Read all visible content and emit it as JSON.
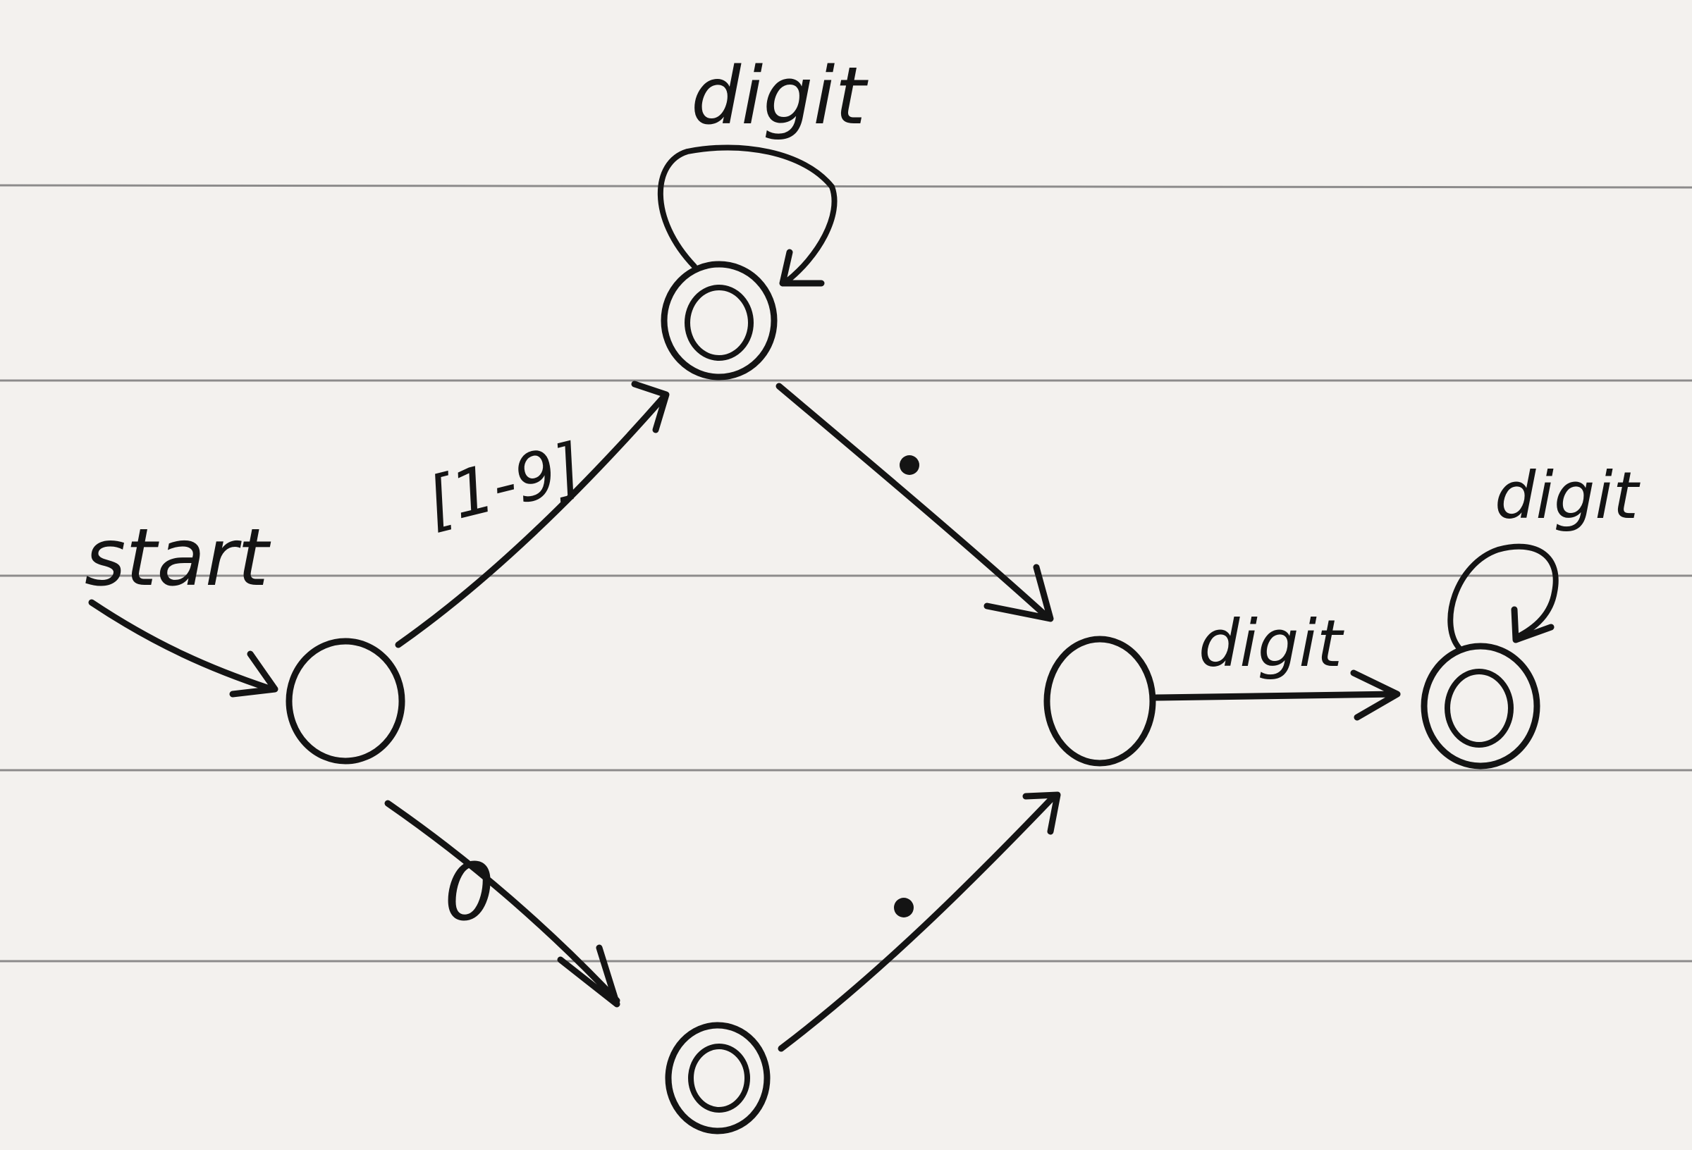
{
  "diagram": {
    "start_label": "start",
    "edges": {
      "start_to_q1": "[1-9]",
      "start_to_q3": "0",
      "q1_to_q2": ".",
      "q3_to_q2": ".",
      "q2_to_q4": "digit"
    },
    "loops": {
      "q1": "digit",
      "q4": "digit"
    }
  },
  "colors": {
    "paper": "#f3f1ee",
    "ink": "#141414",
    "rules": "#6a6a6a"
  }
}
